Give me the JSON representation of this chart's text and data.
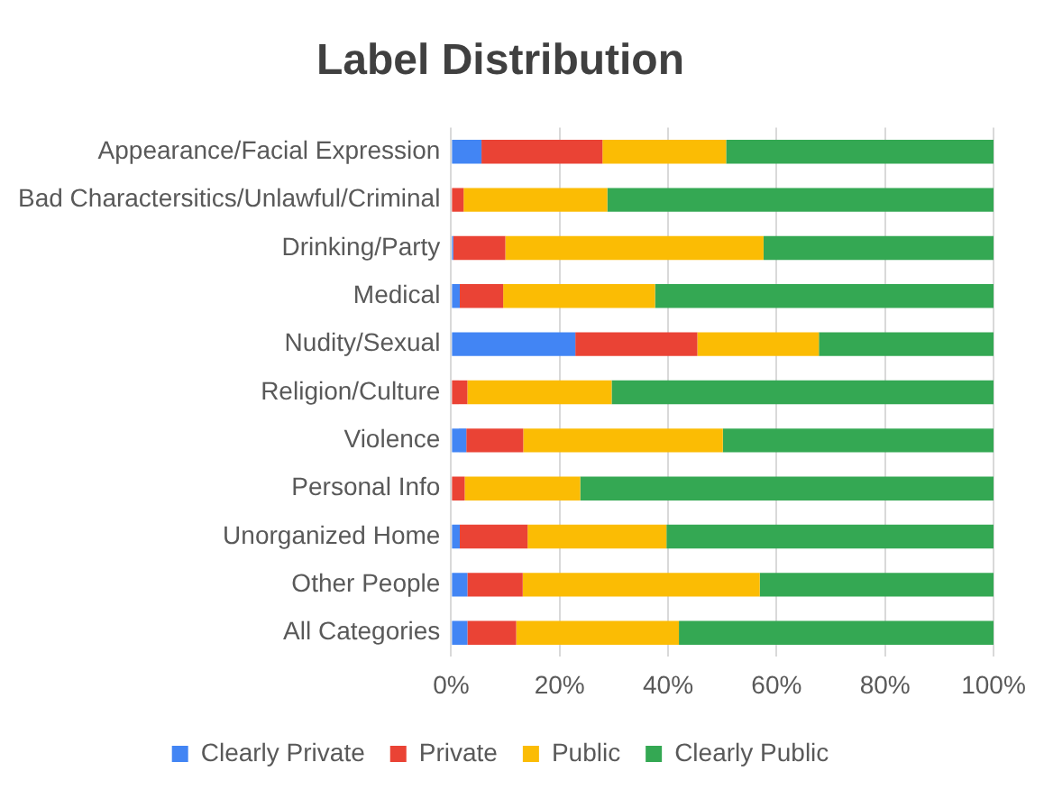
{
  "chart_data": {
    "type": "bar",
    "orientation": "horizontal",
    "stacked": true,
    "title": "Label Distribution",
    "categories": [
      "Appearance/Facial Expression",
      "Bad Charactersitics/Unlawful/Criminal",
      "Drinking/Party",
      "Medical",
      "Nudity/Sexual",
      "Religion/Culture",
      "Violence",
      "Personal Info",
      "Unorganized Home",
      "Other People",
      "All Categories"
    ],
    "series": [
      {
        "name": "Clearly Private",
        "color": "#4285f4",
        "values": [
          5.6,
          0,
          0.4,
          1.6,
          22.9,
          0,
          2.8,
          0,
          1.6,
          3.0,
          3.0
        ]
      },
      {
        "name": "Private",
        "color": "#ea4335",
        "values": [
          22.3,
          2.3,
          9.6,
          8.0,
          22.5,
          3.0,
          10.5,
          2.5,
          12.5,
          10.2,
          9.0
        ]
      },
      {
        "name": "Public",
        "color": "#fbbc04",
        "values": [
          22.8,
          26.5,
          47.6,
          28.0,
          22.4,
          26.6,
          36.8,
          21.3,
          25.6,
          43.7,
          30.0
        ]
      },
      {
        "name": "Clearly Public",
        "color": "#34a853",
        "values": [
          49.3,
          71.2,
          42.4,
          62.4,
          32.2,
          70.4,
          49.9,
          76.2,
          60.3,
          43.1,
          58.0
        ]
      }
    ],
    "xlim": [
      0,
      100
    ],
    "xticks": [
      {
        "value": 0,
        "label": "0%"
      },
      {
        "value": 20,
        "label": "20%"
      },
      {
        "value": 40,
        "label": "40%"
      },
      {
        "value": 60,
        "label": "60%"
      },
      {
        "value": 80,
        "label": "80%"
      },
      {
        "value": 100,
        "label": "100%"
      }
    ],
    "grid": "x",
    "legend": "bottom"
  }
}
